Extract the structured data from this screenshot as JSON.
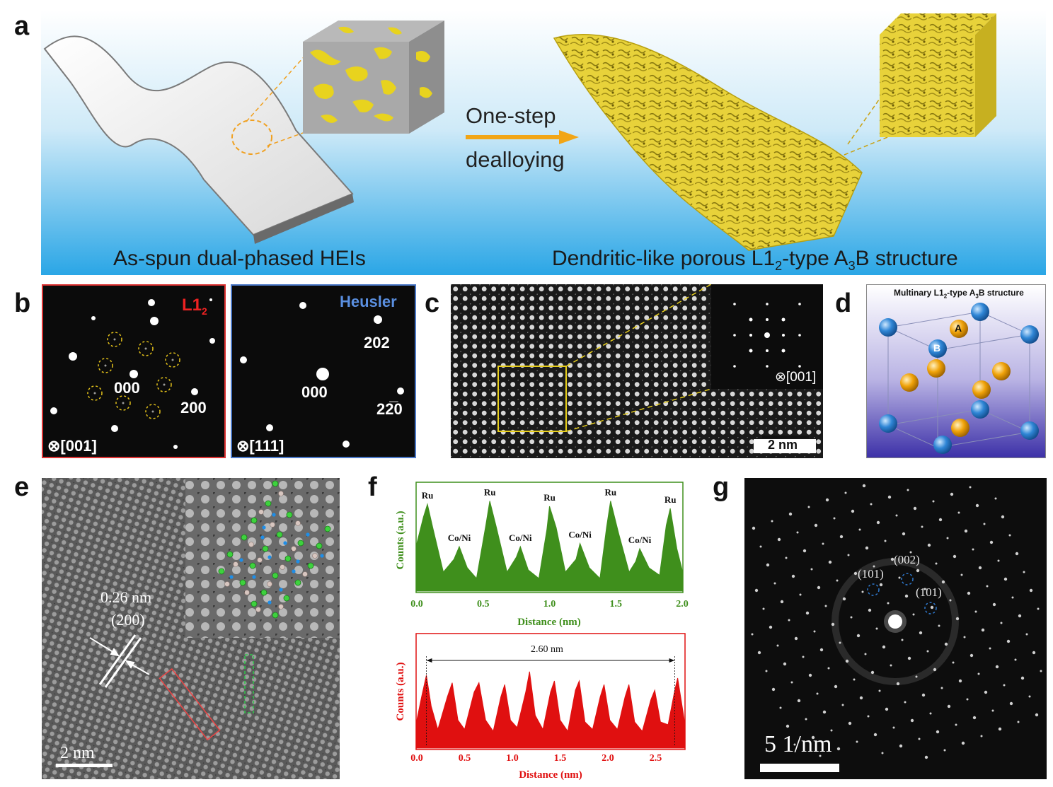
{
  "panel_labels": {
    "a": "a",
    "b": "b",
    "c": "c",
    "d": "d",
    "e": "e",
    "f": "f",
    "g": "g"
  },
  "panel_a": {
    "left_caption": "As-spun dual-phased HEIs",
    "arrow_top": "One-step",
    "arrow_bottom": "dealloying",
    "right_caption_prefix": "Dendritic-like porous L1",
    "right_caption_sub1": "2",
    "right_caption_mid": "-type A",
    "right_caption_sub2": "3",
    "right_caption_suffix": "B structure"
  },
  "panel_b": {
    "left": {
      "phase": "L1",
      "phase_sub": "2",
      "zone_axis": "⊗[001]",
      "spot_000": "000",
      "spot_200": "200"
    },
    "right": {
      "phase": "Heusler",
      "zone_axis": "⊗[111]",
      "spot_000": "000",
      "spot_202": "202",
      "spot_220": "22̅0"
    }
  },
  "panel_c": {
    "fft_zone_axis": "⊗[001]",
    "scale_bar": "2 nm"
  },
  "panel_d": {
    "title_prefix": "Multinary L1",
    "title_sub1": "2",
    "title_mid": "-type A",
    "title_sub2": "3",
    "title_suffix": "B structure",
    "atom_a": "A",
    "atom_b": "B",
    "colors": {
      "a_site": "#f0a30a",
      "b_site": "#2f86d6"
    }
  },
  "panel_e": {
    "spacing": "0.26 nm",
    "plane": "(200)",
    "scale_bar": "2 nm"
  },
  "panel_f": {
    "top_ylabel": "Counts (a.u.)",
    "top_xlabel": "Distance (nm)",
    "bottom_ylabel": "Counts (a.u.)",
    "bottom_xlabel": "Distance (nm)",
    "top_peak_labels": [
      "Ru",
      "Co/Ni",
      "Ru",
      "Co/Ni",
      "Ru",
      "Co/Ni",
      "Ru",
      "Co/Ni",
      "Ru"
    ],
    "bottom_annotation": "2.60 nm",
    "top_ticks": [
      "0.0",
      "0.5",
      "1.0",
      "1.5",
      "2.0"
    ],
    "bottom_ticks": [
      "0.0",
      "0.5",
      "1.0",
      "1.5",
      "2.0",
      "2.5"
    ],
    "top_color": "#3f8f1c",
    "bottom_color": "#e01010"
  },
  "panel_g": {
    "spot_101": "(101)",
    "spot_002": "(002)",
    "spot_m101": "(1̄01)",
    "scale_bar": "5 1/nm"
  },
  "chart_data": [
    {
      "type": "area",
      "xlabel": "Distance (nm)",
      "ylabel": "Counts (a.u.)",
      "xlim": [
        0.0,
        2.0
      ],
      "x": [
        0.0,
        0.05,
        0.08,
        0.12,
        0.2,
        0.28,
        0.32,
        0.38,
        0.45,
        0.52,
        0.55,
        0.6,
        0.68,
        0.75,
        0.78,
        0.84,
        0.92,
        0.98,
        1.0,
        1.05,
        1.12,
        1.2,
        1.23,
        1.3,
        1.38,
        1.43,
        1.46,
        1.52,
        1.6,
        1.65,
        1.68,
        1.75,
        1.83,
        1.88,
        1.91,
        1.96,
        2.0
      ],
      "y": [
        0.45,
        0.7,
        0.82,
        0.6,
        0.18,
        0.3,
        0.42,
        0.22,
        0.12,
        0.62,
        0.85,
        0.6,
        0.18,
        0.32,
        0.42,
        0.2,
        0.12,
        0.58,
        0.8,
        0.6,
        0.18,
        0.3,
        0.45,
        0.22,
        0.12,
        0.6,
        0.85,
        0.55,
        0.18,
        0.28,
        0.4,
        0.22,
        0.15,
        0.62,
        0.78,
        0.4,
        0.2
      ],
      "peak_labels": [
        {
          "x": 0.08,
          "label": "Ru"
        },
        {
          "x": 0.32,
          "label": "Co/Ni"
        },
        {
          "x": 0.55,
          "label": "Ru"
        },
        {
          "x": 0.78,
          "label": "Co/Ni"
        },
        {
          "x": 1.0,
          "label": "Ru"
        },
        {
          "x": 1.23,
          "label": "Co/Ni"
        },
        {
          "x": 1.46,
          "label": "Ru"
        },
        {
          "x": 1.68,
          "label": "Co/Ni"
        },
        {
          "x": 1.91,
          "label": "Ru"
        }
      ]
    },
    {
      "type": "area",
      "xlabel": "Distance (nm)",
      "ylabel": "Counts (a.u.)",
      "xlim": [
        0.0,
        2.8
      ],
      "x": [
        0.0,
        0.05,
        0.1,
        0.15,
        0.22,
        0.32,
        0.37,
        0.43,
        0.5,
        0.6,
        0.65,
        0.72,
        0.8,
        0.88,
        0.92,
        0.98,
        1.05,
        1.14,
        1.18,
        1.24,
        1.32,
        1.4,
        1.44,
        1.5,
        1.58,
        1.66,
        1.7,
        1.76,
        1.84,
        1.92,
        1.96,
        2.02,
        2.1,
        2.18,
        2.22,
        2.28,
        2.36,
        2.45,
        2.49,
        2.55,
        2.63,
        2.7,
        2.73,
        2.8
      ],
      "y": [
        0.3,
        0.55,
        0.78,
        0.45,
        0.2,
        0.55,
        0.7,
        0.3,
        0.2,
        0.6,
        0.7,
        0.3,
        0.18,
        0.55,
        0.68,
        0.3,
        0.22,
        0.6,
        0.82,
        0.35,
        0.2,
        0.6,
        0.72,
        0.3,
        0.18,
        0.62,
        0.72,
        0.28,
        0.2,
        0.55,
        0.68,
        0.3,
        0.2,
        0.55,
        0.68,
        0.28,
        0.18,
        0.52,
        0.62,
        0.28,
        0.25,
        0.62,
        0.75,
        0.3
      ],
      "annotations": [
        {
          "from": 0.1,
          "to": 2.7,
          "label": "2.60 nm"
        }
      ]
    }
  ]
}
